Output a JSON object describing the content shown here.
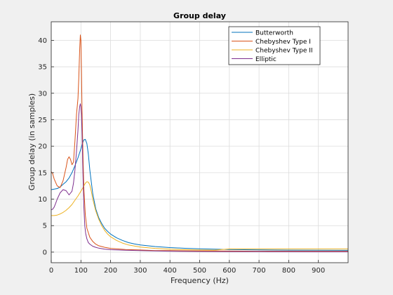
{
  "chart_data": {
    "type": "line",
    "title": "Group delay",
    "xlabel": "Frequency (Hz)",
    "ylabel": "Group delay (in samples)",
    "xlim": [
      0,
      1000
    ],
    "ylim": [
      -2,
      43.5
    ],
    "xticks": [
      0,
      100,
      200,
      300,
      400,
      500,
      600,
      700,
      800,
      900
    ],
    "yticks": [
      0,
      5,
      10,
      15,
      20,
      25,
      30,
      35,
      40
    ],
    "grid": true,
    "legend_position": "top-right",
    "series": [
      {
        "name": "Butterworth",
        "color": "#0072bd",
        "x": [
          0,
          10,
          20,
          30,
          40,
          50,
          60,
          70,
          80,
          90,
          100,
          105,
          110,
          115,
          120,
          125,
          130,
          140,
          150,
          160,
          170,
          180,
          190,
          200,
          220,
          240,
          260,
          280,
          300,
          350,
          400,
          450,
          500,
          600,
          700,
          800,
          900,
          1000
        ],
        "y": [
          11.8,
          11.9,
          12.0,
          12.3,
          12.8,
          13.3,
          14.0,
          15.0,
          16.3,
          17.8,
          19.5,
          20.5,
          21.2,
          21.3,
          20.5,
          18.5,
          15.5,
          11.0,
          8.2,
          6.5,
          5.4,
          4.5,
          3.9,
          3.4,
          2.7,
          2.2,
          1.8,
          1.55,
          1.35,
          1.05,
          0.85,
          0.72,
          0.62,
          0.5,
          0.42,
          0.38,
          0.35,
          0.33
        ]
      },
      {
        "name": "Chebyshev Type I",
        "color": "#d95319",
        "x": [
          0,
          5,
          10,
          20,
          30,
          40,
          50,
          55,
          60,
          65,
          70,
          75,
          80,
          85,
          90,
          93,
          96,
          98,
          100,
          102,
          104,
          107,
          110,
          115,
          120,
          130,
          140,
          150,
          160,
          180,
          200,
          250,
          300,
          350,
          400,
          500,
          600,
          700,
          800,
          900,
          1000
        ],
        "y": [
          15.2,
          14.8,
          13.8,
          12.5,
          12.2,
          13.5,
          16.0,
          17.5,
          18.0,
          17.5,
          16.5,
          17.0,
          21.0,
          26.0,
          29.0,
          33.0,
          38.5,
          41.0,
          40.0,
          34.0,
          26.0,
          18.0,
          12.0,
          7.0,
          4.5,
          2.8,
          2.0,
          1.5,
          1.2,
          0.9,
          0.7,
          0.5,
          0.4,
          0.3,
          0.28,
          0.22,
          0.2,
          0.18,
          0.17,
          0.16,
          0.15
        ]
      },
      {
        "name": "Chebyshev Type II",
        "color": "#edb120",
        "x": [
          0,
          10,
          20,
          30,
          40,
          50,
          60,
          70,
          80,
          90,
          100,
          105,
          110,
          115,
          120,
          125,
          130,
          135,
          140,
          150,
          160,
          170,
          180,
          190,
          200,
          220,
          240,
          260,
          300,
          350,
          400,
          450,
          500,
          550,
          600,
          700,
          800,
          900,
          1000
        ],
        "y": [
          6.9,
          6.9,
          7.0,
          7.2,
          7.5,
          7.9,
          8.4,
          9.0,
          9.8,
          10.6,
          11.5,
          12.0,
          12.5,
          13.0,
          13.3,
          13.2,
          12.7,
          11.5,
          10.0,
          7.8,
          6.2,
          5.0,
          4.1,
          3.4,
          2.9,
          2.2,
          1.7,
          1.35,
          0.95,
          0.7,
          0.55,
          0.45,
          0.4,
          0.38,
          0.6,
          0.6,
          0.6,
          0.6,
          0.6
        ]
      },
      {
        "name": "Elliptic",
        "color": "#7e2f8e",
        "x": [
          0,
          5,
          10,
          15,
          20,
          30,
          40,
          50,
          60,
          70,
          75,
          80,
          85,
          90,
          93,
          96,
          98,
          100,
          102,
          104,
          106,
          108,
          110,
          113,
          116,
          120,
          125,
          130,
          140,
          150,
          160,
          180,
          200,
          250,
          300,
          350,
          400,
          500,
          600,
          700,
          800,
          900,
          1000
        ],
        "y": [
          8.0,
          8.1,
          8.5,
          9.2,
          10.0,
          11.2,
          11.8,
          11.6,
          10.8,
          11.5,
          13.0,
          15.5,
          19.0,
          23.0,
          26.0,
          27.5,
          28.0,
          27.5,
          26.0,
          22.0,
          17.0,
          12.0,
          8.5,
          5.0,
          3.5,
          2.5,
          1.8,
          1.5,
          1.1,
          0.9,
          0.75,
          0.55,
          0.45,
          0.35,
          0.28,
          0.22,
          0.18,
          0.12,
          0.1,
          0.08,
          0.07,
          0.06,
          0.05
        ]
      }
    ]
  }
}
